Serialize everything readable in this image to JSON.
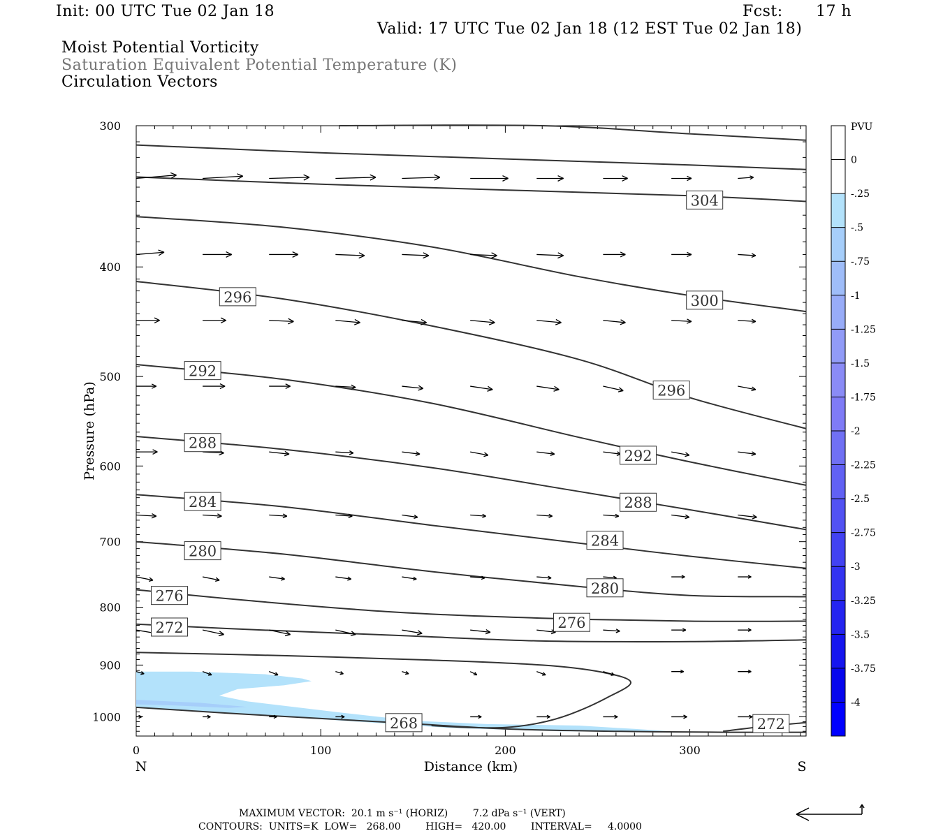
{
  "header": {
    "init": "Init: 00 UTC Tue 02 Jan 18",
    "fcst_label": "Fcst:",
    "fcst_value": "17 h",
    "valid": "Valid: 17 UTC Tue 02 Jan 18 (12 EST Tue 02 Jan 18)"
  },
  "fields": {
    "line1": "Moist Potential Vorticity",
    "line2": "Saturation Equivalent Potential Temperature (K)",
    "line3": "Circulation Vectors"
  },
  "footer": {
    "max_vector": "MAXIMUM VECTOR:  20.1 m s⁻¹ (HORIZ)        7.2 dPa s⁻¹ (VERT)",
    "contours": "CONTOURS:  UNITS=K  LOW=   268.00        HIGH=   420.00        INTERVAL=     4.0000"
  },
  "chart_data": {
    "type": "cross-section",
    "xlabel": "Distance (km)",
    "ylabel": "Pressure (hPa)",
    "xlim": [
      0,
      363
    ],
    "ylim": [
      300,
      1040
    ],
    "y_log": true,
    "x_ticks": [
      0,
      100,
      200,
      300
    ],
    "y_ticks": [
      300,
      400,
      500,
      600,
      700,
      800,
      900,
      1000
    ],
    "x_end_labels": {
      "left": "N",
      "right": "S"
    },
    "colorbar": {
      "title": "PVU",
      "ticks": [
        "0",
        "-.25",
        "-.5",
        "-.75",
        "-1",
        "-1.25",
        "-1.5",
        "-1.75",
        "-2",
        "-2.25",
        "-2.5",
        "-2.75",
        "-3",
        "-3.25",
        "-3.5",
        "-3.75",
        "-4"
      ],
      "colors": [
        "#ffffff",
        "#ffffff",
        "#b3e2fb",
        "#a6cefa",
        "#9fbdf9",
        "#98acf8",
        "#919bf7",
        "#8a8bf6",
        "#7f7bf6",
        "#7070f4",
        "#6161f4",
        "#5252f3",
        "#4242f2",
        "#3333f1",
        "#2424f0",
        "#1515ef",
        "#0606ee",
        "#0000ff"
      ]
    },
    "contours": [
      {
        "label": "268",
        "points": [
          [
            0,
            981
          ],
          [
            60,
            995
          ],
          [
            140,
            1012
          ],
          [
            200,
            1025
          ],
          [
            260,
            1030
          ],
          [
            320,
            1032
          ],
          [
            363,
            1032
          ]
        ]
      },
      {
        "label": "",
        "points": [
          [
            0,
            877
          ],
          [
            80,
            883
          ],
          [
            160,
            891
          ],
          [
            220,
            900
          ],
          [
            252,
            913
          ],
          [
            268,
            932
          ],
          [
            255,
            962
          ],
          [
            235,
            995
          ],
          [
            218,
            1013
          ],
          [
            200,
            1022
          ],
          [
            180,
            1022
          ],
          [
            160,
            1018
          ]
        ]
      },
      {
        "label": "272",
        "points": [
          [
            0,
            828
          ],
          [
            60,
            837
          ],
          [
            140,
            847
          ],
          [
            220,
            857
          ],
          [
            300,
            858
          ],
          [
            363,
            855
          ]
        ]
      },
      {
        "label": "272",
        "points": [
          [
            318,
            1030
          ],
          [
            340,
            1020
          ],
          [
            363,
            1012
          ]
        ]
      },
      {
        "label": "276",
        "points": [
          [
            0,
            772
          ],
          [
            60,
            789
          ],
          [
            140,
            808
          ],
          [
            220,
            818
          ],
          [
            300,
            823
          ],
          [
            363,
            823
          ]
        ]
      },
      {
        "label": "280",
        "points": [
          [
            0,
            700
          ],
          [
            80,
            718
          ],
          [
            160,
            744
          ],
          [
            240,
            767
          ],
          [
            300,
            781
          ],
          [
            363,
            783
          ]
        ]
      },
      {
        "label": "284",
        "points": [
          [
            0,
            636
          ],
          [
            80,
            652
          ],
          [
            160,
            677
          ],
          [
            240,
            702
          ],
          [
            300,
            721
          ],
          [
            363,
            739
          ]
        ]
      },
      {
        "label": "288",
        "points": [
          [
            0,
            565
          ],
          [
            80,
            580
          ],
          [
            160,
            602
          ],
          [
            240,
            632
          ],
          [
            300,
            656
          ],
          [
            363,
            683
          ]
        ]
      },
      {
        "label": "292",
        "points": [
          [
            0,
            488
          ],
          [
            80,
            503
          ],
          [
            160,
            528
          ],
          [
            240,
            566
          ],
          [
            300,
            595
          ],
          [
            363,
            624
          ]
        ]
      },
      {
        "label": "296",
        "points": [
          [
            0,
            412
          ],
          [
            80,
            427
          ],
          [
            160,
            451
          ],
          [
            240,
            483
          ],
          [
            300,
            522
          ],
          [
            363,
            556
          ]
        ]
      },
      {
        "label": "300",
        "points": [
          [
            0,
            361
          ],
          [
            80,
            369
          ],
          [
            160,
            384
          ],
          [
            240,
            408
          ],
          [
            300,
            424
          ],
          [
            363,
            438
          ]
        ]
      },
      {
        "label": "304",
        "points": [
          [
            0,
            333
          ],
          [
            100,
            338
          ],
          [
            200,
            342
          ],
          [
            300,
            346
          ],
          [
            363,
            350
          ]
        ]
      },
      {
        "label": "",
        "points": [
          [
            0,
            312
          ],
          [
            100,
            317
          ],
          [
            200,
            321
          ],
          [
            300,
            325
          ],
          [
            363,
            328
          ]
        ]
      },
      {
        "label": "",
        "points": [
          [
            110,
            300
          ],
          [
            220,
            300
          ],
          [
            300,
            305
          ],
          [
            363,
            309
          ]
        ]
      }
    ],
    "contour_labels": [
      {
        "text": "304",
        "x": 308,
        "p": 349
      },
      {
        "text": "300",
        "x": 308,
        "p": 428
      },
      {
        "text": "296",
        "x": 55,
        "p": 425
      },
      {
        "text": "296",
        "x": 290,
        "p": 514
      },
      {
        "text": "292",
        "x": 36,
        "p": 494
      },
      {
        "text": "292",
        "x": 272,
        "p": 587
      },
      {
        "text": "288",
        "x": 36,
        "p": 572
      },
      {
        "text": "288",
        "x": 272,
        "p": 646
      },
      {
        "text": "284",
        "x": 36,
        "p": 645
      },
      {
        "text": "284",
        "x": 254,
        "p": 698
      },
      {
        "text": "280",
        "x": 36,
        "p": 713
      },
      {
        "text": "280",
        "x": 254,
        "p": 769
      },
      {
        "text": "276",
        "x": 18,
        "p": 781
      },
      {
        "text": "276",
        "x": 236,
        "p": 825
      },
      {
        "text": "272",
        "x": 18,
        "p": 833
      },
      {
        "text": "272",
        "x": 344,
        "p": 1014
      },
      {
        "text": "268",
        "x": 145,
        "p": 1012
      }
    ],
    "shading": [
      {
        "class": "-.25 to -.5",
        "points": [
          [
            0,
            912
          ],
          [
            30,
            912
          ],
          [
            70,
            917
          ],
          [
            90,
            925
          ],
          [
            95,
            930
          ],
          [
            80,
            938
          ],
          [
            55,
            945
          ],
          [
            45,
            958
          ],
          [
            60,
            969
          ],
          [
            110,
            991
          ],
          [
            150,
            1008
          ],
          [
            190,
            1015
          ],
          [
            240,
            1018
          ],
          [
            270,
            1025
          ],
          [
            290,
            1030
          ],
          [
            230,
            1030
          ],
          [
            170,
            1023
          ],
          [
            120,
            1010
          ],
          [
            60,
            995
          ],
          [
            30,
            987
          ],
          [
            0,
            980
          ]
        ]
      },
      {
        "class": "-.5 to -.75",
        "points": [
          [
            0,
            966
          ],
          [
            35,
            972
          ],
          [
            60,
            980
          ],
          [
            50,
            982
          ],
          [
            20,
            977
          ],
          [
            0,
            975
          ]
        ]
      }
    ],
    "vectors": {
      "x": [
        0,
        36,
        72,
        108,
        144,
        181,
        217,
        253,
        290,
        326
      ],
      "rows": [
        {
          "p": 334,
          "u": [
            36,
            36,
            36,
            36,
            34,
            34,
            24,
            22,
            18,
            14
          ],
          "v": [
            -3,
            -2,
            -1,
            -1,
            -1,
            0,
            0,
            0,
            0,
            -1
          ]
        },
        {
          "p": 390,
          "u": [
            25,
            26,
            26,
            26,
            24,
            24,
            24,
            20,
            18,
            16
          ],
          "v": [
            -2,
            0,
            0,
            1,
            1,
            1,
            1,
            0,
            0,
            1
          ]
        },
        {
          "p": 446,
          "u": [
            21,
            21,
            22,
            22,
            22,
            22,
            22,
            20,
            18,
            16
          ],
          "v": [
            0,
            0,
            1,
            2,
            2,
            2,
            2,
            2,
            1,
            1
          ]
        },
        {
          "p": 510,
          "u": [
            18,
            20,
            19,
            18,
            19,
            20,
            20,
            18,
            16,
            16
          ],
          "v": [
            0,
            0,
            0,
            1,
            2,
            3,
            3,
            4,
            3,
            3
          ]
        },
        {
          "p": 583,
          "u": [
            19,
            19,
            18,
            16,
            16,
            16,
            16,
            16,
            16,
            16
          ],
          "v": [
            0,
            1,
            2,
            1,
            2,
            3,
            2,
            2,
            3,
            2
          ]
        },
        {
          "p": 663,
          "u": [
            18,
            17,
            16,
            15,
            14,
            14,
            14,
            14,
            16,
            17
          ],
          "v": [
            1,
            1,
            1,
            1,
            2,
            1,
            1,
            1,
            2,
            2
          ]
        },
        {
          "p": 752,
          "u": [
            15,
            15,
            14,
            14,
            13,
            13,
            13,
            12,
            12,
            12
          ],
          "v": [
            3,
            3,
            2,
            2,
            2,
            1,
            1,
            1,
            0,
            0
          ]
        },
        {
          "p": 838,
          "u": [
            18,
            19,
            19,
            18,
            18,
            18,
            17,
            15,
            13,
            12
          ],
          "v": [
            3,
            4,
            4,
            4,
            3,
            2,
            2,
            1,
            0,
            0
          ]
        },
        {
          "p": 912,
          "u": [
            7,
            8,
            8,
            7,
            6,
            6,
            8,
            10,
            11,
            12
          ],
          "v": [
            2,
            3,
            3,
            2,
            2,
            3,
            3,
            3,
            0,
            0
          ]
        },
        {
          "p": 1000,
          "u": [
            5,
            7,
            7,
            8,
            8,
            10,
            12,
            13,
            14,
            13
          ],
          "v": [
            0,
            0,
            0,
            0,
            0,
            0,
            0,
            0,
            0,
            0
          ]
        }
      ]
    }
  }
}
